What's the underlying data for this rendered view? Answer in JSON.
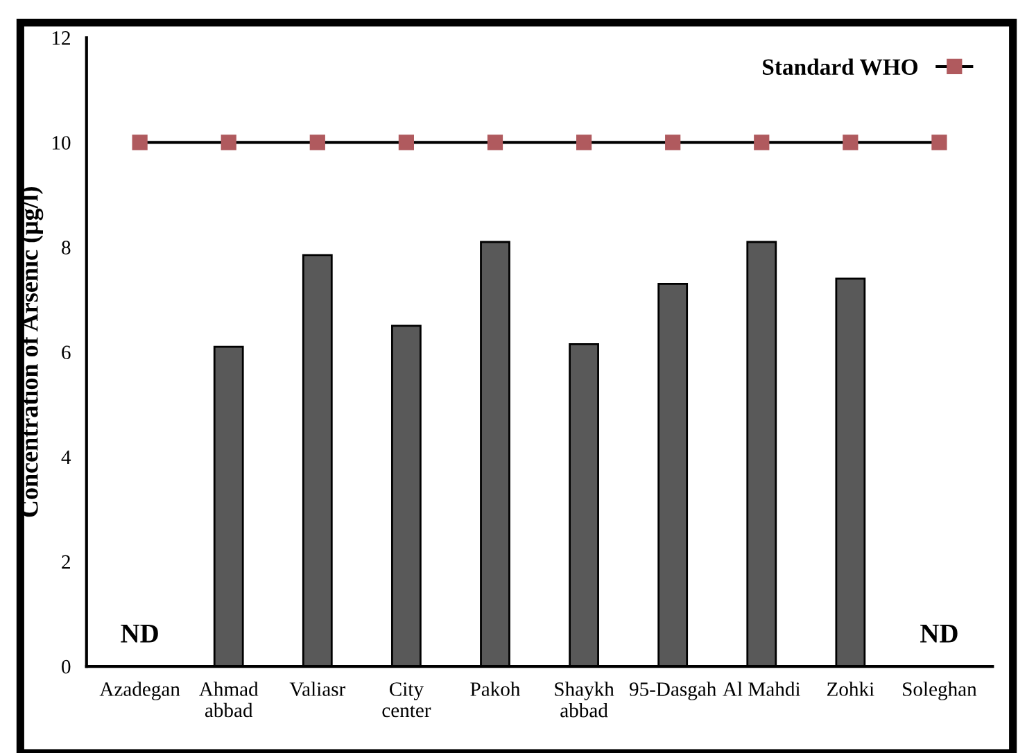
{
  "chart_data": {
    "type": "bar",
    "ylabel": "Concentration of Arsenic (μg/l)",
    "categories": [
      "Azadegan",
      "Ahmad\nabbad",
      "Valiasr",
      "City\ncenter",
      "Pakoh",
      "Shaykh\nabbad",
      "95-Dasgah",
      "Al Mahdi",
      "Zohki",
      "Soleghan"
    ],
    "series": [
      {
        "color": "#595959",
        "values": [
          null,
          6.1,
          7.85,
          6.5,
          8.1,
          6.15,
          7.3,
          8.1,
          7.4,
          null
        ]
      },
      {
        "type": "line",
        "name": "Standard WHO",
        "color": "#b05a5e",
        "marker": "square",
        "values": [
          10,
          10,
          10,
          10,
          10,
          10,
          10,
          10,
          10,
          10
        ]
      }
    ],
    "annotations": [
      "ND",
      "ND"
    ],
    "ylim": [
      0,
      12
    ],
    "yticks": [
      0,
      2,
      4,
      6,
      8,
      10,
      12
    ],
    "legend": "top right",
    "grid": false
  }
}
